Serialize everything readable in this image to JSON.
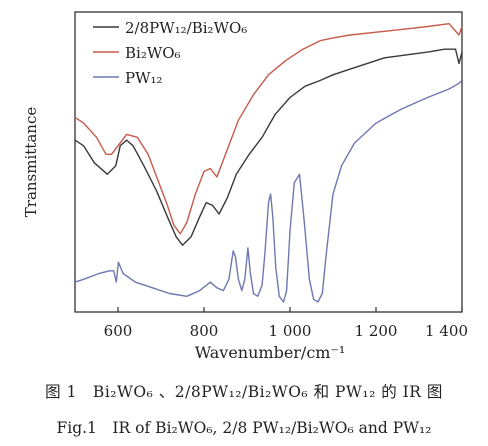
{
  "chart_data": {
    "type": "line",
    "xlabel": "Wavenumber/cm⁻¹",
    "ylabel": "Transmittance",
    "xlim": [
      500,
      1400
    ],
    "x_ticks": [
      "600",
      "800",
      "1 000",
      "1 200",
      "1 400"
    ],
    "x_tick_values": [
      600,
      800,
      1000,
      1200,
      1400
    ],
    "ylim": [
      0,
      100
    ],
    "y_ticks_shown": false,
    "legend_position": "top-left",
    "series": [
      {
        "name": "2/8PW₁₂/Bi₂WO₆",
        "color": "#3a3a3a",
        "points": [
          [
            500,
            57
          ],
          [
            520,
            55
          ],
          [
            545,
            49
          ],
          [
            575,
            45
          ],
          [
            595,
            48
          ],
          [
            605,
            55
          ],
          [
            620,
            57
          ],
          [
            635,
            55
          ],
          [
            660,
            48
          ],
          [
            690,
            39
          ],
          [
            715,
            30
          ],
          [
            735,
            23
          ],
          [
            750,
            20
          ],
          [
            770,
            23
          ],
          [
            790,
            30
          ],
          [
            805,
            35
          ],
          [
            820,
            34
          ],
          [
            835,
            31
          ],
          [
            855,
            37
          ],
          [
            875,
            45
          ],
          [
            905,
            52
          ],
          [
            935,
            58
          ],
          [
            965,
            66
          ],
          [
            1000,
            72
          ],
          [
            1035,
            76
          ],
          [
            1070,
            78
          ],
          [
            1100,
            80
          ],
          [
            1140,
            82
          ],
          [
            1180,
            84
          ],
          [
            1220,
            86
          ],
          [
            1270,
            87
          ],
          [
            1320,
            88
          ],
          [
            1360,
            89
          ],
          [
            1385,
            89
          ],
          [
            1393,
            84
          ],
          [
            1400,
            88
          ]
        ]
      },
      {
        "name": "Bi₂WO₆",
        "color": "#c85a4a",
        "points": [
          [
            500,
            65
          ],
          [
            520,
            63
          ],
          [
            550,
            58
          ],
          [
            572,
            52
          ],
          [
            585,
            52
          ],
          [
            600,
            55
          ],
          [
            620,
            59
          ],
          [
            645,
            58
          ],
          [
            670,
            52
          ],
          [
            695,
            42
          ],
          [
            715,
            34
          ],
          [
            730,
            27
          ],
          [
            745,
            24
          ],
          [
            760,
            28
          ],
          [
            780,
            38
          ],
          [
            800,
            46
          ],
          [
            815,
            47
          ],
          [
            830,
            44
          ],
          [
            850,
            52
          ],
          [
            880,
            64
          ],
          [
            915,
            73
          ],
          [
            950,
            80
          ],
          [
            990,
            85
          ],
          [
            1030,
            89
          ],
          [
            1070,
            92
          ],
          [
            1100,
            93
          ],
          [
            1140,
            94
          ],
          [
            1200,
            95
          ],
          [
            1260,
            96
          ],
          [
            1320,
            97
          ],
          [
            1370,
            98
          ],
          [
            1393,
            94
          ],
          [
            1400,
            97
          ]
        ]
      },
      {
        "name": "PW₁₂",
        "color": "#6f77b0",
        "points": [
          [
            500,
            7
          ],
          [
            520,
            8
          ],
          [
            555,
            10
          ],
          [
            580,
            11
          ],
          [
            590,
            11
          ],
          [
            596,
            7
          ],
          [
            601,
            14
          ],
          [
            612,
            10
          ],
          [
            640,
            7
          ],
          [
            680,
            5
          ],
          [
            720,
            3
          ],
          [
            760,
            2
          ],
          [
            790,
            4
          ],
          [
            815,
            7
          ],
          [
            830,
            5
          ],
          [
            845,
            4
          ],
          [
            858,
            8
          ],
          [
            868,
            18
          ],
          [
            873,
            16
          ],
          [
            880,
            8
          ],
          [
            888,
            4
          ],
          [
            895,
            8
          ],
          [
            902,
            19
          ],
          [
            908,
            10
          ],
          [
            915,
            3
          ],
          [
            925,
            2
          ],
          [
            935,
            6
          ],
          [
            942,
            18
          ],
          [
            950,
            35
          ],
          [
            955,
            38
          ],
          [
            960,
            30
          ],
          [
            967,
            12
          ],
          [
            975,
            2
          ],
          [
            985,
            0
          ],
          [
            992,
            4
          ],
          [
            1000,
            25
          ],
          [
            1010,
            42
          ],
          [
            1022,
            45
          ],
          [
            1032,
            30
          ],
          [
            1045,
            8
          ],
          [
            1055,
            1
          ],
          [
            1065,
            0
          ],
          [
            1075,
            3
          ],
          [
            1085,
            18
          ],
          [
            1100,
            38
          ],
          [
            1120,
            48
          ],
          [
            1150,
            56
          ],
          [
            1200,
            63
          ],
          [
            1260,
            68
          ],
          [
            1320,
            72
          ],
          [
            1370,
            75
          ],
          [
            1393,
            77
          ],
          [
            1400,
            78
          ]
        ]
      }
    ]
  },
  "caption": {
    "cn": "图 1　Bi₂WO₆ 、2/8PW₁₂/Bi₂WO₆ 和 PW₁₂ 的 IR 图",
    "en": "Fig.1　IR of Bi₂WO₆, 2/8 PW₁₂/Bi₂WO₆ and PW₁₂"
  }
}
